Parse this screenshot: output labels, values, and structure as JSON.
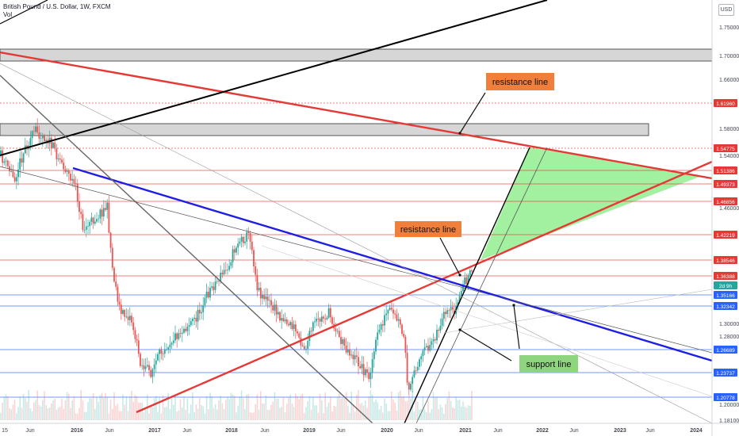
{
  "header": {
    "symbol_line": "British Pound / U.S. Dollar, 1W, FXCM",
    "volume_label": "Vol"
  },
  "currency_button": "USD",
  "price_scale": {
    "ticks": [
      "1.75000",
      "1.70000",
      "1.66000",
      "1.58000",
      "1.54000",
      "1.46000",
      "1.30000",
      "1.28000",
      "1.20000",
      "1.18100"
    ],
    "badges": [
      {
        "text": "1.61960",
        "color": "#e53935"
      },
      {
        "text": "1.54775",
        "color": "#e53935"
      },
      {
        "text": "1.51386",
        "color": "#e53935"
      },
      {
        "text": "1.49373",
        "color": "#e53935"
      },
      {
        "text": "1.46856",
        "color": "#e53935"
      },
      {
        "text": "1.42219",
        "color": "#e53935"
      },
      {
        "text": "1.38546",
        "color": "#e53935"
      },
      {
        "text": "1.36388",
        "color": "#e53935"
      },
      {
        "text": "2d 9h",
        "color": "#26a69a"
      },
      {
        "text": "1.35166",
        "color": "#2962ff"
      },
      {
        "text": "1.32342",
        "color": "#2962ff"
      },
      {
        "text": "1.26689",
        "color": "#2962ff"
      },
      {
        "text": "1.23737",
        "color": "#2962ff"
      },
      {
        "text": "1.20778",
        "color": "#2962ff"
      }
    ]
  },
  "time_axis": [
    "15",
    "Jun",
    "2016",
    "Jun",
    "2017",
    "Jun",
    "2018",
    "Jun",
    "2019",
    "Jun",
    "2020",
    "Jun",
    "2021",
    "Jun",
    "2022",
    "Jun",
    "2023",
    "Jun",
    "2024"
  ],
  "annotations": [
    {
      "text": "resistance line",
      "bg": "#f07f3c"
    },
    {
      "text": "resistance line",
      "bg": "#f07f3c"
    },
    {
      "text": "support line",
      "bg": "#8fd47f"
    }
  ],
  "colors": {
    "up": "#26a69a",
    "down": "#ef5350",
    "resistance": "#e53935",
    "blue_trend": "#1e1ee6",
    "black_trend": "#000000",
    "triangle_fill": "#90ee90"
  },
  "chart_data": {
    "type": "candlestick",
    "title": "British Pound / U.S. Dollar, 1W, FXCM",
    "period_range": [
      "2015",
      "2021"
    ],
    "last_price_badge": "1.36388",
    "countdown": "2d 9h",
    "horizontal_levels": {
      "resistance": [
        1.6196,
        1.54775,
        1.51386,
        1.49373,
        1.46856,
        1.42219,
        1.38546,
        1.36388
      ],
      "support": [
        1.35166,
        1.32342,
        1.26689,
        1.23737,
        1.20778
      ]
    },
    "ohlc_sample_yearly": [
      {
        "x": "2015",
        "open": 1.53,
        "high": 1.59,
        "low": 1.46,
        "close": 1.48
      },
      {
        "x": "2016",
        "open": 1.48,
        "high": 1.5,
        "low": 1.2,
        "close": 1.23
      },
      {
        "x": "2017",
        "open": 1.23,
        "high": 1.36,
        "low": 1.2,
        "close": 1.35
      },
      {
        "x": "2018",
        "open": 1.35,
        "high": 1.44,
        "low": 1.25,
        "close": 1.28
      },
      {
        "x": "2019",
        "open": 1.28,
        "high": 1.33,
        "low": 1.2,
        "close": 1.32
      },
      {
        "x": "2020",
        "open": 1.32,
        "high": 1.35,
        "low": 1.14,
        "close": 1.37
      },
      {
        "x": "2021",
        "open": 1.37,
        "high": 1.38,
        "low": 1.35,
        "close": 1.36
      }
    ],
    "ylim": [
      1.181,
      1.79
    ],
    "grid": true,
    "legend": "none"
  }
}
